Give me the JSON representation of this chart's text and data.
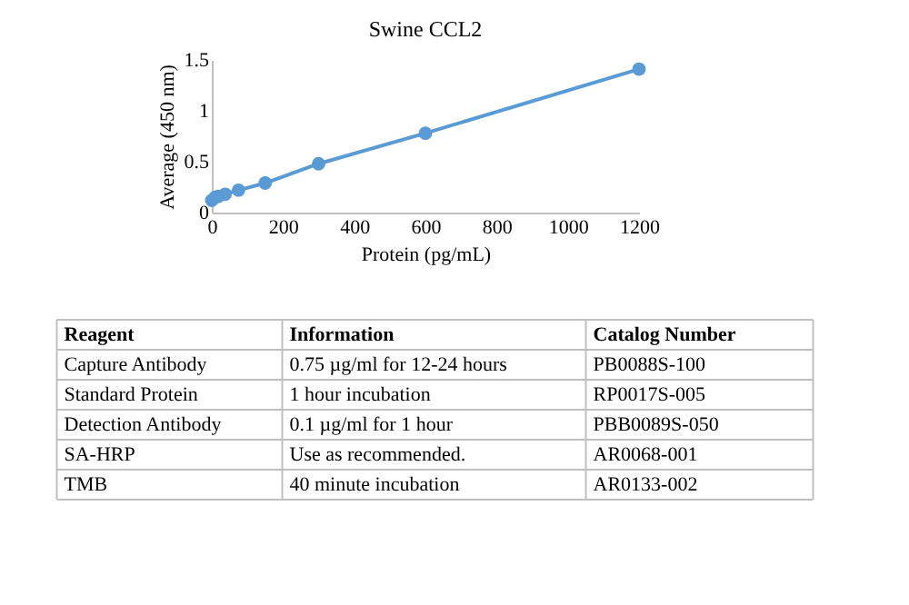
{
  "chart_data": {
    "type": "line",
    "title": "Swine CCL2",
    "xlabel": "Protein (pg/mL)",
    "ylabel": "Average (450 nm)",
    "x": [
      0,
      9.4,
      18.8,
      37.5,
      75,
      150,
      300,
      600,
      1200
    ],
    "series": [
      {
        "color": "#5b9bd5",
        "values": [
          0.12,
          0.15,
          0.16,
          0.18,
          0.22,
          0.29,
          0.48,
          0.78,
          1.41
        ]
      }
    ],
    "xlim": [
      0,
      1200
    ],
    "xticks": [
      0,
      200,
      400,
      600,
      800,
      1000,
      1200
    ],
    "ylim": [
      0,
      1.5
    ],
    "yticks": [
      0,
      0.5,
      1,
      1.5
    ],
    "grid": false,
    "legend": false,
    "marker": "circle",
    "line_style": "solid",
    "annotations": [
      "Reagent",
      "Information",
      "Catalog Number",
      "Capture Antibody",
      "0.75 µg/ml for 12-24 hours",
      "PB0088S-100",
      "Standard Protein",
      "1 hour incubation",
      "RP0017S-005",
      "Detection Antibody",
      "0.1 µg/ml for 1 hour",
      "PBB0089S-050",
      "SA-HRP",
      "Use as recommended.",
      "AR0068-001",
      "TMB",
      "40 minute incubation",
      "AR0133-002"
    ]
  }
}
